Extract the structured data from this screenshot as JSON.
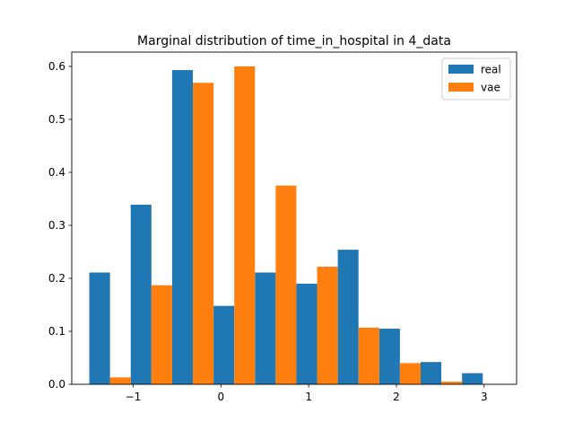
{
  "chart_data": {
    "type": "bar",
    "title": "Marginal distribution of time_in_hospital in 4_data",
    "xlabel": "",
    "ylabel": "",
    "xlim": [
      -1.7,
      3.37
    ],
    "ylim": [
      0,
      0.627
    ],
    "xticks": [
      -1,
      0,
      1,
      2,
      3
    ],
    "xtick_labels": [
      "−1",
      "0",
      "1",
      "2",
      "3"
    ],
    "yticks": [
      0.0,
      0.1,
      0.2,
      0.3,
      0.4,
      0.5,
      0.6
    ],
    "ytick_labels": [
      "0.0",
      "0.1",
      "0.2",
      "0.3",
      "0.4",
      "0.5",
      "0.6"
    ],
    "grid": false,
    "legend_position": "top-right",
    "bin_edges": [
      -1.5,
      -1.028,
      -0.556,
      -0.084,
      0.388,
      0.86,
      1.332,
      1.804,
      2.276,
      2.748,
      3.22
    ],
    "series": [
      {
        "name": "real",
        "color": "#1f77b4",
        "values": [
          0.211,
          0.339,
          0.593,
          0.148,
          0.211,
          0.19,
          0.254,
          0.105,
          0.042,
          0.021
        ]
      },
      {
        "name": "vae",
        "color": "#ff7f0e",
        "values": [
          0.013,
          0.187,
          0.569,
          0.6,
          0.375,
          0.222,
          0.107,
          0.04,
          0.005,
          0.0
        ]
      }
    ]
  }
}
